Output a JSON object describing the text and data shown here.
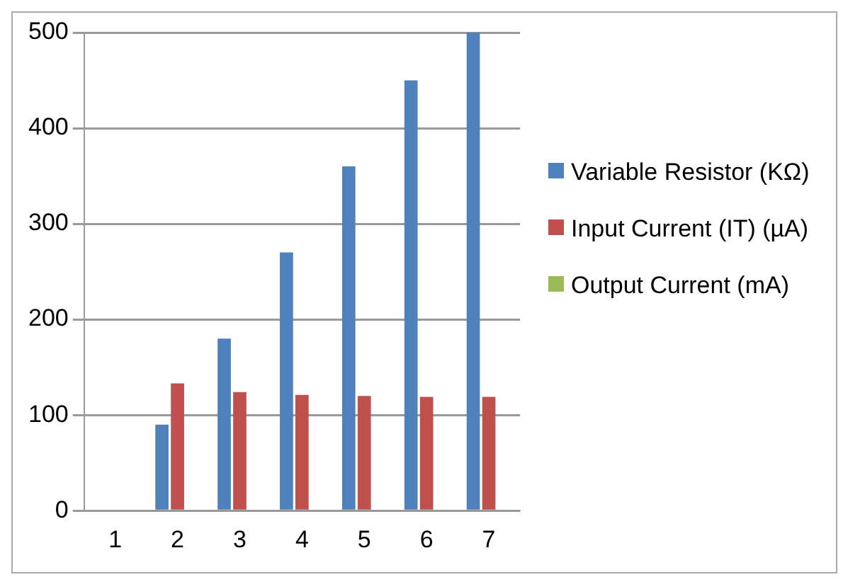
{
  "chart_data": {
    "type": "bar",
    "categories": [
      "1",
      "2",
      "3",
      "4",
      "5",
      "6",
      "7"
    ],
    "series": [
      {
        "name": "Variable Resistor (KΩ)",
        "color": "#4f81bd",
        "values": [
          0,
          90,
          180,
          270,
          360,
          450,
          500
        ]
      },
      {
        "name": "Input  Current (IT) (µA)",
        "color": "#c0504d",
        "values": [
          0,
          133,
          124,
          121,
          120,
          119,
          119
        ]
      },
      {
        "name": "Output Current (mA)",
        "color": "#9bbb59",
        "values": [
          0,
          1,
          1,
          1,
          1,
          1,
          1
        ]
      }
    ],
    "ylim": [
      0,
      500
    ],
    "yticks": [
      0,
      100,
      200,
      300,
      400,
      500
    ],
    "grid": "y",
    "legend": "right"
  }
}
